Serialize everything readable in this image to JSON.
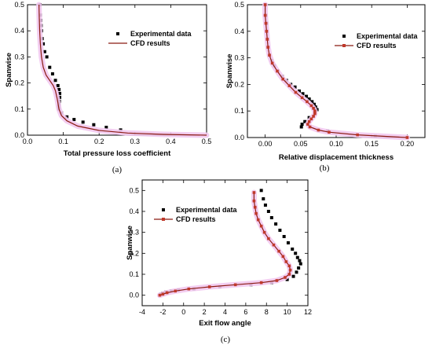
{
  "colors": {
    "experimental": "#000000",
    "cfd_line": "#8b1a12",
    "cfd_marker": "#c0392b",
    "halo": "#f2c9ef"
  },
  "chart_data": [
    {
      "id": "a",
      "type": "scatter",
      "caption": "(a)",
      "xlabel": "Total pressure loss coefficient",
      "ylabel": "Spanwise",
      "xlim": [
        0.0,
        0.5
      ],
      "ylim": [
        0.0,
        0.5
      ],
      "xticks": [
        "0.0",
        "0.1",
        "0.2",
        "0.3",
        "0.4",
        "0.5"
      ],
      "yticks": [
        "0.0",
        "0.1",
        "0.2",
        "0.3",
        "0.4",
        "0.5"
      ],
      "legend": {
        "position": "top-right",
        "entries": [
          "Experimental data",
          "CFD results"
        ]
      },
      "series": [
        {
          "name": "Experimental data",
          "marker": "square",
          "x": [
            0.035,
            0.036,
            0.037,
            0.038,
            0.039,
            0.041,
            0.044,
            0.048,
            0.054,
            0.062,
            0.07,
            0.078,
            0.085,
            0.088,
            0.09,
            0.09,
            0.089,
            0.088,
            0.087,
            0.088,
            0.095,
            0.11,
            0.13,
            0.155,
            0.185,
            0.22,
            0.26
          ],
          "y": [
            0.5,
            0.46,
            0.44,
            0.42,
            0.4,
            0.37,
            0.35,
            0.32,
            0.3,
            0.26,
            0.235,
            0.21,
            0.19,
            0.175,
            0.16,
            0.145,
            0.13,
            0.12,
            0.11,
            0.1,
            0.085,
            0.07,
            0.06,
            0.05,
            0.04,
            0.03,
            0.02
          ]
        },
        {
          "name": "CFD results",
          "marker": "none",
          "x": [
            0.032,
            0.033,
            0.034,
            0.036,
            0.039,
            0.044,
            0.052,
            0.062,
            0.072,
            0.078,
            0.083,
            0.088,
            0.095,
            0.11,
            0.14,
            0.2,
            0.28,
            0.38,
            0.5
          ],
          "y": [
            0.5,
            0.45,
            0.4,
            0.35,
            0.3,
            0.26,
            0.23,
            0.21,
            0.19,
            0.17,
            0.14,
            0.1,
            0.075,
            0.055,
            0.035,
            0.018,
            0.008,
            0.003,
            0.0
          ]
        }
      ]
    },
    {
      "id": "b",
      "type": "scatter",
      "caption": "(b)",
      "xlabel": "Relative displacement thickness",
      "ylabel": "Spanwise",
      "xlim": [
        -0.025,
        0.225
      ],
      "ylim": [
        0.0,
        0.5
      ],
      "xticks": [
        "0.00",
        "0.05",
        "0.10",
        "0.15",
        "0.20"
      ],
      "yticks": [
        "0.0",
        "0.1",
        "0.2",
        "0.3",
        "0.4",
        "0.5"
      ],
      "legend": {
        "position": "top-right",
        "entries": [
          "Experimental data",
          "CFD results"
        ]
      },
      "series": [
        {
          "name": "Experimental data",
          "marker": "square",
          "x": [
            0.0,
            0.001,
            0.002,
            0.002,
            0.003,
            0.004,
            0.006,
            0.009,
            0.013,
            0.018,
            0.024,
            0.03,
            0.036,
            0.042,
            0.048,
            0.053,
            0.058,
            0.062,
            0.066,
            0.069,
            0.071,
            0.073,
            0.07,
            0.062,
            0.056,
            0.052,
            0.051,
            0.088,
            0.155
          ],
          "y": [
            0.5,
            0.46,
            0.43,
            0.4,
            0.37,
            0.34,
            0.31,
            0.29,
            0.27,
            0.25,
            0.23,
            0.215,
            0.2,
            0.19,
            0.175,
            0.165,
            0.155,
            0.145,
            0.135,
            0.125,
            0.115,
            0.105,
            0.09,
            0.075,
            0.06,
            0.05,
            0.04,
            0.025,
            0.005
          ]
        },
        {
          "name": "CFD results",
          "marker": "square",
          "x": [
            0.0,
            0.0,
            0.001,
            0.002,
            0.003,
            0.004,
            0.006,
            0.01,
            0.017,
            0.025,
            0.034,
            0.043,
            0.052,
            0.059,
            0.065,
            0.068,
            0.07,
            0.07,
            0.068,
            0.065,
            0.062,
            0.06,
            0.063,
            0.075,
            0.09,
            0.13,
            0.2
          ],
          "y": [
            0.5,
            0.46,
            0.43,
            0.4,
            0.37,
            0.34,
            0.31,
            0.28,
            0.25,
            0.22,
            0.195,
            0.17,
            0.15,
            0.135,
            0.12,
            0.11,
            0.1,
            0.09,
            0.08,
            0.07,
            0.06,
            0.05,
            0.04,
            0.028,
            0.02,
            0.01,
            0.0
          ]
        }
      ]
    },
    {
      "id": "c",
      "type": "scatter",
      "caption": "(c)",
      "xlabel": "Exit flow angle",
      "ylabel": "Spanwise",
      "xlim": [
        -4,
        12
      ],
      "ylim": [
        -0.05,
        0.55
      ],
      "xticks": [
        "-4",
        "-2",
        "0",
        "2",
        "4",
        "6",
        "8",
        "10",
        "12"
      ],
      "yticks": [
        "0.0",
        "0.1",
        "0.2",
        "0.3",
        "0.4",
        "0.5"
      ],
      "legend": {
        "position": "top-left",
        "entries": [
          "Experimental data",
          "CFD results"
        ]
      },
      "series": [
        {
          "name": "Experimental data",
          "marker": "square",
          "x": [
            7.5,
            7.7,
            7.9,
            8.2,
            8.5,
            8.9,
            9.3,
            9.7,
            10.1,
            10.5,
            10.8,
            11.0,
            11.2,
            11.3,
            11.1,
            10.9,
            10.6,
            10.0,
            8.5,
            6.5,
            3.5,
            1.0,
            -0.5,
            -1.2,
            -1.7,
            -2.0,
            -2.2
          ],
          "y": [
            0.5,
            0.46,
            0.43,
            0.4,
            0.37,
            0.34,
            0.31,
            0.28,
            0.25,
            0.22,
            0.2,
            0.18,
            0.165,
            0.15,
            0.13,
            0.11,
            0.09,
            0.075,
            0.06,
            0.05,
            0.04,
            0.03,
            0.025,
            0.02,
            0.015,
            0.01,
            0.005
          ]
        },
        {
          "name": "CFD results",
          "marker": "square",
          "x": [
            6.8,
            6.8,
            6.9,
            7.0,
            7.2,
            7.5,
            7.8,
            8.2,
            8.7,
            9.2,
            9.6,
            9.9,
            10.2,
            10.3,
            10.2,
            9.8,
            9.0,
            7.5,
            5.0,
            2.5,
            0.5,
            -0.8,
            -1.6,
            -2.0,
            -2.3
          ],
          "y": [
            0.49,
            0.45,
            0.42,
            0.39,
            0.36,
            0.33,
            0.3,
            0.27,
            0.24,
            0.21,
            0.185,
            0.16,
            0.14,
            0.12,
            0.1,
            0.085,
            0.07,
            0.06,
            0.05,
            0.04,
            0.03,
            0.02,
            0.012,
            0.005,
            0.0
          ]
        }
      ]
    }
  ]
}
